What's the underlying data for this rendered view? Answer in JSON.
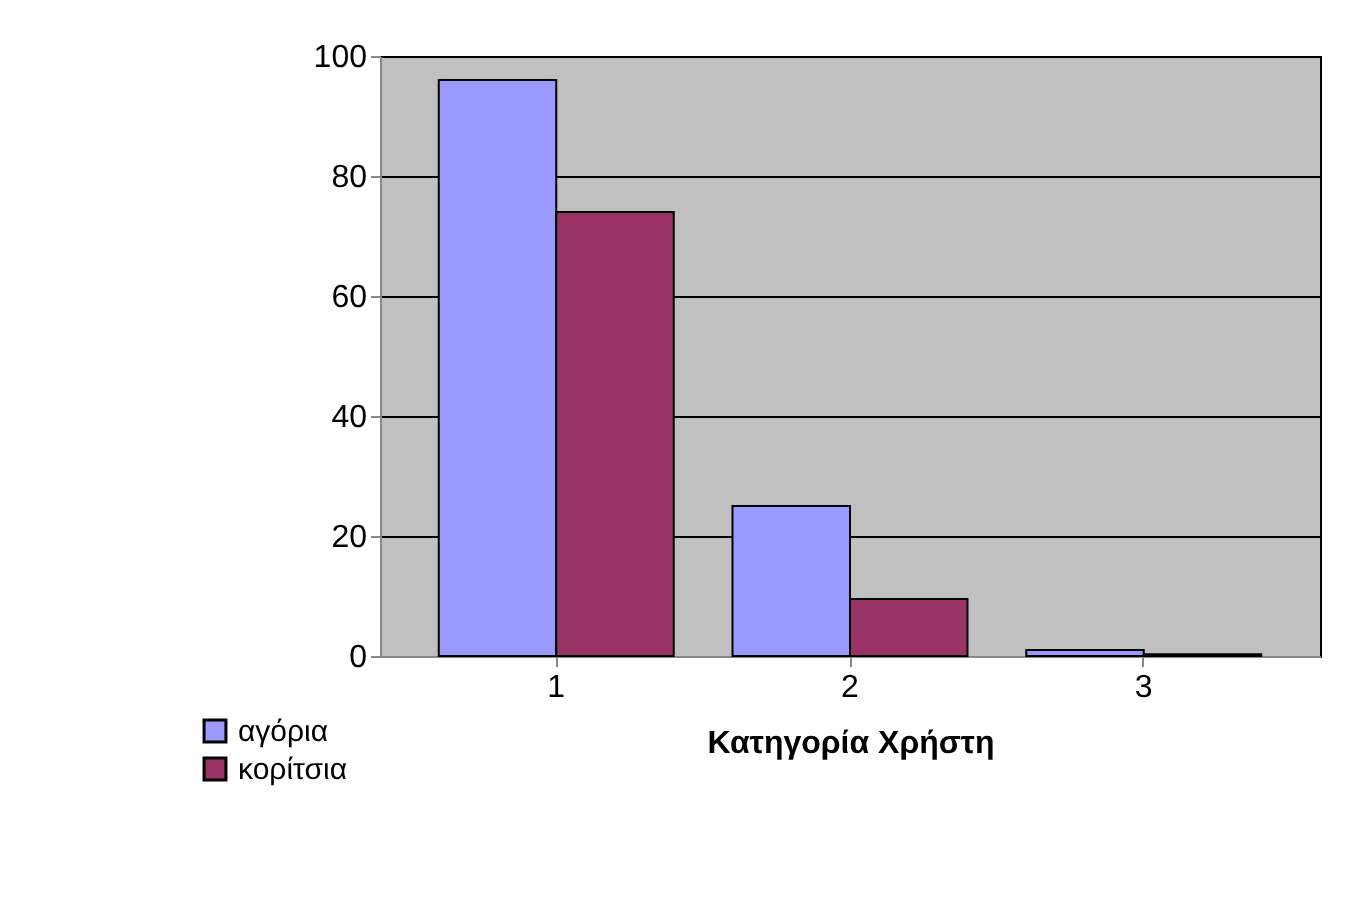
{
  "chart_data": {
    "type": "bar",
    "xlabel": "Κατηγορία Χρήστη",
    "categories": [
      "1",
      "2",
      "3"
    ],
    "series": [
      {
        "name": "αγόρια",
        "color": "#9999ff",
        "values": [
          96,
          25,
          1
        ]
      },
      {
        "name": "κορίτσια",
        "color": "#993366",
        "values": [
          74,
          9.5,
          0.3
        ]
      }
    ],
    "ylim": [
      0,
      100
    ],
    "yticks": [
      0,
      20,
      40,
      60,
      80,
      100
    ],
    "grid": "y",
    "legend": "bottom left"
  }
}
